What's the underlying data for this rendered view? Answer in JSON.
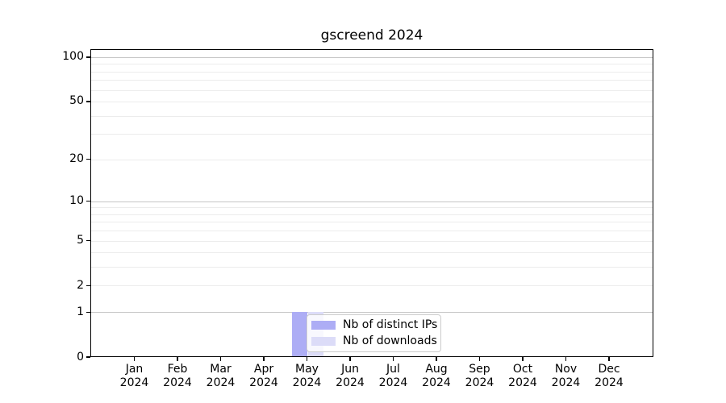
{
  "chart_data": {
    "type": "bar",
    "title": "gscreend 2024",
    "x_categories": [
      {
        "month": "Jan",
        "year": "2024"
      },
      {
        "month": "Feb",
        "year": "2024"
      },
      {
        "month": "Mar",
        "year": "2024"
      },
      {
        "month": "Apr",
        "year": "2024"
      },
      {
        "month": "May",
        "year": "2024"
      },
      {
        "month": "Jun",
        "year": "2024"
      },
      {
        "month": "Jul",
        "year": "2024"
      },
      {
        "month": "Aug",
        "year": "2024"
      },
      {
        "month": "Sep",
        "year": "2024"
      },
      {
        "month": "Oct",
        "year": "2024"
      },
      {
        "month": "Nov",
        "year": "2024"
      },
      {
        "month": "Dec",
        "year": "2024"
      }
    ],
    "series": [
      {
        "name": "Nb of distinct IPs",
        "color": "#adadf5",
        "values": [
          0,
          0,
          0,
          0,
          1,
          0,
          0,
          0,
          0,
          0,
          0,
          0
        ]
      },
      {
        "name": "Nb of downloads",
        "color": "#dcdcf8",
        "values": [
          0,
          0,
          0,
          0,
          1,
          0,
          0,
          0,
          0,
          0,
          0,
          0
        ]
      }
    ],
    "yscale": "log1p",
    "ylim": [
      0,
      113
    ],
    "yticks": [
      0,
      1,
      2,
      5,
      10,
      20,
      50,
      100
    ],
    "major_gridlines": [
      1,
      10,
      100
    ],
    "minor_gridlines": [
      2,
      3,
      4,
      5,
      6,
      7,
      8,
      9,
      20,
      30,
      40,
      50,
      60,
      70,
      80,
      90
    ],
    "grid": true,
    "legend_position": "inside lower-center",
    "colors": {
      "grid_major": "#c6c6c6",
      "grid_minor": "#ececec",
      "spine": "#000000",
      "background": "#ffffff",
      "text": "#000000"
    }
  }
}
